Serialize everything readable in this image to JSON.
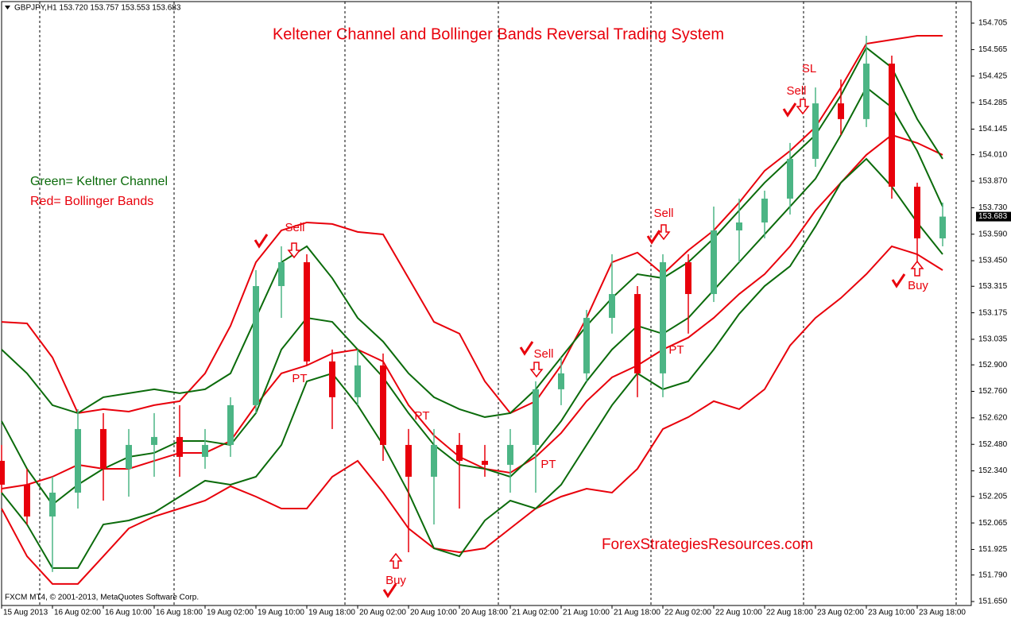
{
  "chart_data": {
    "type": "candlestick",
    "header": "GBPJPY,H1  153.720 153.757 153.553 153.683",
    "title": "Keltener Channel and Bollinger Bands Reversal Trading System",
    "notes": [
      "Green= Keltner Channel",
      "Red= Bollinger Bands"
    ],
    "note_colors": [
      "#0b6b0b",
      "#e8000b"
    ],
    "watermark": "ForexStrategiesResources.com",
    "copyright": "FXCM MT4, © 2001-2013, MetaQuotes Software Corp.",
    "annotations": [
      "Sell",
      "Sell",
      "SL",
      "Sell",
      "Sell",
      "Buy",
      "Buy",
      "PT",
      "PT",
      "PT",
      "PT"
    ],
    "categories": [
      "15 Aug 2013",
      null,
      "16 Aug 02:00",
      null,
      "16 Aug 10:00",
      null,
      "16 Aug 18:00",
      null,
      "19 Aug 02:00",
      null,
      "19 Aug 10:00",
      null,
      "19 Aug 18:00",
      null,
      "20 Aug 02:00",
      null,
      "20 Aug 10:00",
      null,
      "20 Aug 18:00",
      null,
      "21 Aug 02:00",
      null,
      "21 Aug 10:00",
      null,
      "21 Aug 18:00",
      null,
      "22 Aug 02:00",
      null,
      "22 Aug 10:00",
      null,
      "22 Aug 18:00",
      null,
      "23 Aug 02:00",
      null,
      "23 Aug 10:00",
      null,
      "23 Aug 18:00",
      null
    ],
    "ohlc": {
      "up_color": "#4cb585",
      "down_color": "#e8000b",
      "open": [
        152.393,
        152.267,
        152.099,
        152.225,
        152.561,
        152.351,
        152.477,
        152.519,
        152.414,
        152.477,
        152.687,
        153.316,
        153.442,
        152.918,
        152.729,
        152.897,
        152.477,
        152.309,
        152.477,
        152.393,
        152.372,
        152.477,
        152.771,
        152.855,
        153.148,
        153.274,
        152.855,
        153.442,
        153.274,
        153.61,
        153.652,
        153.778,
        153.988,
        154.281,
        154.198,
        154.491,
        153.841,
        153.568
      ],
      "high": [
        152.477,
        152.351,
        152.309,
        152.666,
        152.645,
        152.561,
        152.645,
        152.687,
        152.561,
        152.729,
        153.4,
        153.526,
        153.484,
        152.981,
        152.981,
        152.96,
        152.561,
        152.561,
        152.54,
        152.477,
        152.561,
        152.813,
        152.939,
        153.19,
        153.484,
        153.316,
        153.484,
        153.484,
        153.736,
        153.778,
        153.82,
        154.072,
        154.365,
        154.407,
        154.638,
        154.533,
        153.862,
        153.757
      ],
      "low": [
        152.225,
        152.057,
        151.806,
        152.141,
        152.183,
        152.204,
        152.309,
        152.309,
        152.351,
        152.414,
        152.645,
        153.148,
        152.897,
        152.561,
        152.687,
        152.393,
        151.91,
        152.057,
        152.141,
        152.309,
        152.225,
        152.225,
        152.687,
        152.813,
        153.065,
        152.729,
        152.729,
        153.065,
        153.232,
        153.442,
        153.568,
        153.694,
        153.946,
        154.114,
        154.156,
        153.778,
        153.4,
        153.526
      ],
      "close": [
        152.267,
        152.099,
        152.225,
        152.561,
        152.351,
        152.477,
        152.519,
        152.414,
        152.477,
        152.687,
        153.316,
        153.442,
        152.918,
        152.729,
        152.897,
        152.477,
        152.309,
        152.477,
        152.393,
        152.372,
        152.477,
        152.771,
        152.855,
        153.148,
        153.274,
        152.855,
        153.442,
        153.274,
        153.61,
        153.652,
        153.778,
        153.988,
        154.281,
        154.198,
        154.491,
        153.841,
        153.568,
        153.683
      ]
    },
    "lines": [
      {
        "color": "#e8000b",
        "values": [
          153.127,
          153.119,
          152.939,
          152.645,
          152.666,
          152.653,
          152.687,
          152.708,
          152.855,
          153.106,
          153.442,
          153.61,
          153.652,
          153.644,
          153.602,
          153.589,
          153.358,
          153.127,
          153.065,
          152.813,
          152.645,
          152.708,
          152.897,
          153.148,
          153.442,
          153.493,
          153.379,
          153.505,
          153.61,
          153.757,
          153.925,
          154.03,
          154.156,
          154.365,
          154.596,
          154.617,
          154.638,
          154.638
        ]
      },
      {
        "color": "#e8000b",
        "values": [
          152.246,
          152.267,
          152.309,
          152.372,
          152.351,
          152.351,
          152.393,
          152.435,
          152.435,
          152.498,
          152.687,
          152.855,
          152.897,
          152.96,
          152.981,
          152.918,
          152.687,
          152.527,
          152.414,
          152.351,
          152.33,
          152.414,
          152.54,
          152.708,
          152.834,
          152.897,
          152.981,
          153.044,
          153.148,
          153.274,
          153.379,
          153.526,
          153.715,
          153.862,
          154.009,
          154.114,
          154.072,
          154.009
        ]
      },
      {
        "color": "#e8000b",
        "values": [
          152.141,
          151.889,
          151.743,
          151.743,
          151.889,
          152.036,
          152.099,
          152.141,
          152.183,
          152.259,
          152.204,
          152.141,
          152.141,
          152.309,
          152.393,
          152.225,
          152.036,
          151.931,
          151.91,
          151.931,
          152.036,
          152.141,
          152.204,
          152.246,
          152.225,
          152.351,
          152.561,
          152.624,
          152.708,
          152.666,
          152.771,
          153.002,
          153.148,
          153.253,
          153.379,
          153.526,
          153.484,
          153.4
        ]
      },
      {
        "color": "#0b6b0b",
        "values": [
          152.981,
          152.855,
          152.687,
          152.645,
          152.729,
          152.75,
          152.771,
          152.75,
          152.771,
          152.855,
          153.148,
          153.442,
          153.526,
          153.358,
          153.148,
          153.023,
          152.855,
          152.729,
          152.666,
          152.624,
          152.645,
          152.771,
          152.939,
          153.106,
          153.253,
          153.379,
          153.358,
          153.442,
          153.568,
          153.715,
          153.862,
          153.988,
          154.114,
          154.323,
          154.575,
          154.47,
          154.198,
          153.988
        ]
      },
      {
        "color": "#0b6b0b",
        "values": [
          152.603,
          152.351,
          152.162,
          152.267,
          152.351,
          152.414,
          152.435,
          152.498,
          152.498,
          152.477,
          152.645,
          152.981,
          153.148,
          153.127,
          152.981,
          152.834,
          152.645,
          152.477,
          152.372,
          152.351,
          152.309,
          152.435,
          152.603,
          152.813,
          152.981,
          153.106,
          153.064,
          153.148,
          153.295,
          153.442,
          153.589,
          153.736,
          153.883,
          154.114,
          154.365,
          154.26,
          154.03,
          153.736
        ]
      },
      {
        "color": "#0b6b0b",
        "values": [
          152.225,
          152.057,
          151.827,
          151.827,
          152.057,
          152.078,
          152.12,
          152.204,
          152.288,
          152.267,
          152.309,
          152.477,
          152.813,
          152.855,
          152.687,
          152.477,
          152.225,
          151.931,
          151.889,
          152.078,
          152.183,
          152.141,
          152.267,
          152.477,
          152.687,
          152.855,
          152.771,
          152.813,
          152.981,
          153.169,
          153.316,
          153.421,
          153.631,
          153.862,
          153.988,
          153.841,
          153.652,
          153.484
        ]
      }
    ],
    "ylim": [
      151.629,
      154.827
    ],
    "yticks": [
      154.705,
      154.565,
      154.425,
      154.285,
      154.145,
      {
        "value": 154.01,
        "label": "154.010"
      },
      {
        "value": 153.87,
        "label": "153.870"
      },
      {
        "value": 153.73,
        "label": "153.730"
      },
      {
        "value": 153.59,
        "label": "153.590"
      },
      {
        "value": 153.45,
        "label": "153.450"
      },
      153.315,
      153.175,
      153.035,
      {
        "value": 152.9,
        "label": "152.900"
      },
      {
        "value": 152.76,
        "label": "152.760"
      },
      {
        "value": 152.62,
        "label": "152.620"
      },
      {
        "value": 152.48,
        "label": "152.480"
      },
      {
        "value": 152.34,
        "label": "152.340"
      },
      152.205,
      152.065,
      151.925,
      {
        "value": 151.79,
        "label": "151.790"
      },
      {
        "value": 151.65,
        "label": "151.650"
      }
    ]
  }
}
